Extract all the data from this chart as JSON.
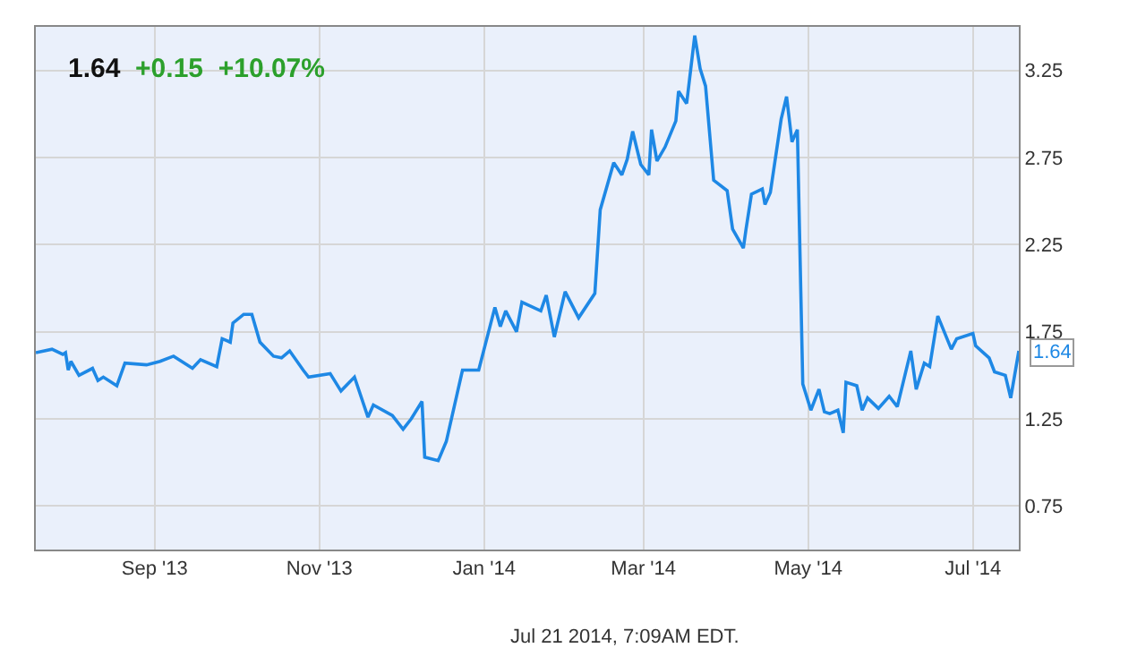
{
  "chart_data": {
    "type": "line",
    "title": "1.64",
    "subtitle": "+0.15 +10.07%",
    "x": [
      "2013-07-19",
      "2013-07-25",
      "2013-07-29",
      "2013-07-30",
      "2013-07-31",
      "2013-08-01",
      "2013-08-04",
      "2013-08-09",
      "2013-08-11",
      "2013-08-13",
      "2013-08-18",
      "2013-08-21",
      "2013-08-29",
      "2013-09-03",
      "2013-09-08",
      "2013-09-15",
      "2013-09-18",
      "2013-09-24",
      "2013-09-26",
      "2013-09-29",
      "2013-09-30",
      "2013-10-04",
      "2013-10-07",
      "2013-10-10",
      "2013-10-15",
      "2013-10-18",
      "2013-10-21",
      "2013-10-26",
      "2013-10-28",
      "2013-11-05",
      "2013-11-09",
      "2013-11-14",
      "2013-11-19",
      "2013-11-21",
      "2013-11-28",
      "2013-12-02",
      "2013-12-05",
      "2013-12-09",
      "2013-12-10",
      "2013-12-15",
      "2013-12-18",
      "2013-12-24",
      "2013-12-30",
      "2014-01-05",
      "2014-01-07",
      "2014-01-09",
      "2014-01-13",
      "2014-01-15",
      "2014-01-22",
      "2014-01-24",
      "2014-01-27",
      "2014-01-31",
      "2014-02-05",
      "2014-02-11",
      "2014-02-13",
      "2014-02-18",
      "2014-02-21",
      "2014-02-23",
      "2014-02-25",
      "2014-02-28",
      "2014-03-03",
      "2014-03-04",
      "2014-03-06",
      "2014-03-09",
      "2014-03-13",
      "2014-03-14",
      "2014-03-17",
      "2014-03-20",
      "2014-03-22",
      "2014-03-24",
      "2014-03-27",
      "2014-04-01",
      "2014-04-03",
      "2014-04-07",
      "2014-04-08",
      "2014-04-10",
      "2014-04-14",
      "2014-04-15",
      "2014-04-17",
      "2014-04-21",
      "2014-04-23",
      "2014-04-25",
      "2014-04-27",
      "2014-04-29",
      "2014-05-02",
      "2014-05-05",
      "2014-05-07",
      "2014-05-09",
      "2014-05-12",
      "2014-05-14",
      "2014-05-15",
      "2014-05-19",
      "2014-05-21",
      "2014-05-23",
      "2014-05-27",
      "2014-05-31",
      "2014-06-03",
      "2014-06-08",
      "2014-06-10",
      "2014-06-13",
      "2014-06-15",
      "2014-06-18",
      "2014-06-23",
      "2014-06-25",
      "2014-07-01",
      "2014-07-02",
      "2014-07-07",
      "2014-07-09",
      "2014-07-13",
      "2014-07-15",
      "2014-07-18"
    ],
    "series": [
      {
        "color": "#1e88e5",
        "values": [
          1.63,
          1.65,
          1.62,
          1.63,
          1.53,
          1.58,
          1.5,
          1.54,
          1.47,
          1.49,
          1.44,
          1.57,
          1.56,
          1.58,
          1.61,
          1.54,
          1.59,
          1.55,
          1.71,
          1.69,
          1.8,
          1.85,
          1.85,
          1.69,
          1.61,
          1.6,
          1.64,
          1.53,
          1.49,
          1.51,
          1.41,
          1.49,
          1.26,
          1.33,
          1.27,
          1.19,
          1.25,
          1.35,
          1.03,
          1.01,
          1.12,
          1.53,
          1.53,
          1.89,
          1.78,
          1.87,
          1.75,
          1.92,
          1.87,
          1.96,
          1.72,
          1.98,
          1.83,
          1.97,
          2.45,
          2.72,
          2.65,
          2.74,
          2.9,
          2.71,
          2.65,
          2.91,
          2.73,
          2.81,
          2.96,
          3.13,
          3.06,
          3.45,
          3.26,
          3.16,
          2.62,
          2.56,
          2.34,
          2.23,
          2.34,
          2.54,
          2.57,
          2.48,
          2.55,
          2.97,
          3.1,
          2.84,
          2.91,
          1.45,
          1.3,
          1.42,
          1.29,
          1.28,
          1.3,
          1.17,
          1.46,
          1.44,
          1.3,
          1.37,
          1.31,
          1.38,
          1.32,
          1.64,
          1.42,
          1.57,
          1.55,
          1.84,
          1.65,
          1.71,
          1.74,
          1.67,
          1.6,
          1.52,
          1.5,
          1.37,
          1.64
        ]
      }
    ],
    "xlim": [
      "2013-07-19",
      "2014-07-18"
    ],
    "xticks": [
      {
        "value": "2013-09-01",
        "label": "Sep '13"
      },
      {
        "value": "2013-11-01",
        "label": "Nov '13"
      },
      {
        "value": "2014-01-01",
        "label": "Jan '14"
      },
      {
        "value": "2014-03-01",
        "label": "Mar '14"
      },
      {
        "value": "2014-05-01",
        "label": "May '14"
      },
      {
        "value": "2014-07-01",
        "label": "Jul '14"
      }
    ],
    "ylim": [
      0.5,
      3.5
    ],
    "yticks": [
      0.75,
      1.25,
      1.75,
      2.25,
      2.75,
      3.25
    ],
    "grid": true,
    "marker": "none",
    "line_style": "solid",
    "annotations": [
      {
        "text": "1.64",
        "x": "2014-07-18",
        "y": 1.64
      },
      "Jul 21 2014, 7:09AM EDT."
    ]
  }
}
